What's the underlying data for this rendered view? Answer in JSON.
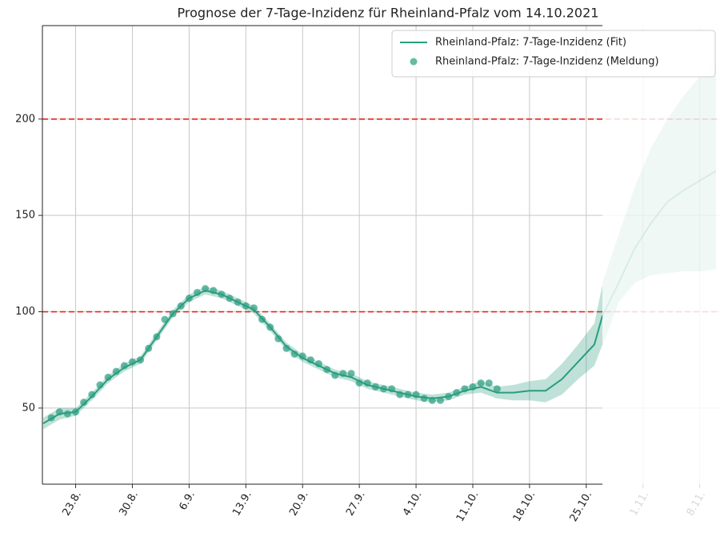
{
  "chart_data": {
    "type": "line",
    "title": "Prognose der 7-Tage-Inzidenz für Rheinland-Pfalz vom 14.10.2021",
    "xlim": [
      230.9,
      314.5
    ],
    "ylim": [
      10.5,
      248.5
    ],
    "xticks": [
      {
        "value": 235,
        "label": "23.8."
      },
      {
        "value": 242,
        "label": "30.8."
      },
      {
        "value": 249,
        "label": "6.9."
      },
      {
        "value": 256,
        "label": "13.9."
      },
      {
        "value": 263,
        "label": "20.9."
      },
      {
        "value": 270,
        "label": "27.9."
      },
      {
        "value": 277,
        "label": "4.10."
      },
      {
        "value": 284,
        "label": "11.10."
      },
      {
        "value": 291,
        "label": "18.10."
      },
      {
        "value": 298,
        "label": "25.10."
      },
      {
        "value": 305,
        "label": "1.11."
      },
      {
        "value": 312,
        "label": "8.11."
      }
    ],
    "yticks": [
      50,
      100,
      150,
      200
    ],
    "grid": true,
    "hlines": [
      100,
      200
    ],
    "hline_color": "#e8231c",
    "legend": "upper right",
    "series": [
      {
        "name": "Rheinland-Pfalz: 7-Tage-Inzidenz (Fit)",
        "color": "#2a9d7f",
        "x": [
          231,
          233,
          235,
          237,
          239,
          241,
          243,
          245,
          247,
          249,
          251,
          253,
          255,
          257,
          259,
          261,
          263,
          265,
          267,
          269,
          271,
          273,
          275,
          277,
          279,
          281,
          283,
          285,
          287,
          289,
          291,
          293,
          295,
          297,
          299,
          300
        ],
        "values": [
          42,
          47,
          48,
          56,
          65,
          71,
          75,
          87,
          99,
          107,
          111,
          109,
          105,
          101,
          92,
          82,
          76,
          72,
          68,
          66,
          62,
          60,
          58,
          56,
          55,
          56,
          59,
          61,
          58,
          58,
          59,
          59,
          65,
          74,
          83,
          98
        ],
        "lower": [
          39,
          44,
          46,
          54,
          63,
          69,
          73,
          85,
          97,
          105,
          109,
          107,
          103,
          99,
          90,
          80,
          74,
          70,
          66,
          64,
          60,
          58,
          56,
          54,
          53,
          54,
          57,
          58,
          55,
          54,
          54,
          53,
          57,
          65,
          72,
          83
        ],
        "upper": [
          45,
          50,
          50,
          58,
          67,
          73,
          77,
          89,
          101,
          109,
          113,
          111,
          107,
          103,
          94,
          84,
          78,
          74,
          70,
          68,
          64,
          62,
          60,
          58,
          57,
          58,
          61,
          64,
          61,
          62,
          64,
          65,
          73,
          83,
          94,
          114
        ]
      },
      {
        "name": "Rheinland-Pfalz: 7-Tage-Inzidenz (Meldung)",
        "color": "#2a9d7f",
        "marker": "dot",
        "x": [
          232,
          233,
          234,
          235,
          236,
          237,
          238,
          239,
          240,
          241,
          242,
          243,
          244,
          245,
          246,
          247,
          248,
          249,
          250,
          251,
          252,
          253,
          254,
          255,
          256,
          257,
          258,
          259,
          260,
          261,
          262,
          263,
          264,
          265,
          266,
          267,
          268,
          269,
          270,
          271,
          272,
          273,
          274,
          275,
          276,
          277,
          278,
          279,
          280,
          281,
          282,
          283,
          284,
          285,
          286,
          287
        ],
        "values": [
          45,
          48,
          47,
          48,
          53,
          57,
          62,
          66,
          69,
          72,
          74,
          75,
          81,
          87,
          96,
          99,
          103,
          107,
          110,
          112,
          111,
          109,
          107,
          105,
          103,
          102,
          96,
          92,
          86,
          81,
          78,
          77,
          75,
          73,
          70,
          67,
          68,
          68,
          63,
          63,
          61,
          60,
          60,
          57,
          57,
          57,
          55,
          54,
          54,
          56,
          58,
          60,
          61,
          63,
          63,
          60
        ]
      },
      {
        "color": "#2a9d7f",
        "x": [
          300,
          302,
          304,
          306,
          308,
          310,
          312,
          314
        ],
        "values": [
          98,
          115,
          133,
          146,
          157,
          163,
          168,
          173
        ],
        "lower": [
          82,
          105,
          115,
          119,
          120,
          121,
          121,
          122
        ],
        "upper": [
          115,
          140,
          165,
          185,
          200,
          212,
          222,
          230
        ]
      }
    ]
  }
}
